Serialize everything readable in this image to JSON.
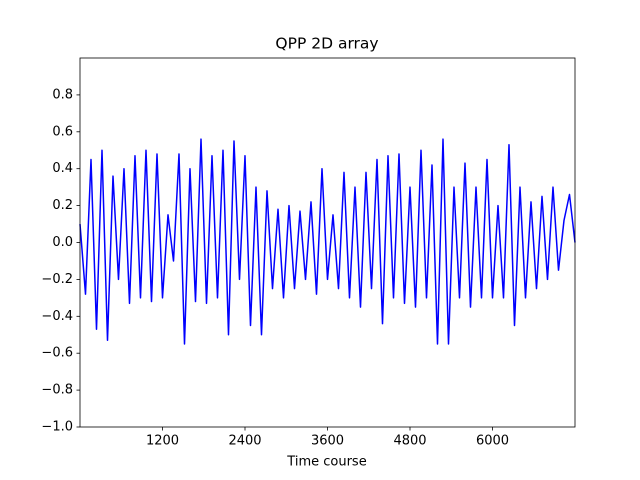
{
  "chart_data": {
    "type": "line",
    "title": "QPP 2D array",
    "x_label": "Time course",
    "x": [
      0,
      80,
      160,
      240,
      320,
      400,
      480,
      560,
      640,
      720,
      800,
      880,
      960,
      1040,
      1120,
      1200,
      1280,
      1360,
      1440,
      1520,
      1600,
      1680,
      1760,
      1840,
      1920,
      2000,
      2080,
      2160,
      2240,
      2320,
      2400,
      2480,
      2560,
      2640,
      2720,
      2800,
      2880,
      2960,
      3040,
      3120,
      3200,
      3280,
      3360,
      3440,
      3520,
      3600,
      3680,
      3760,
      3840,
      3920,
      4000,
      4080,
      4160,
      4240,
      4320,
      4400,
      4480,
      4560,
      4640,
      4720,
      4800,
      4880,
      4960,
      5040,
      5120,
      5200,
      5280,
      5360,
      5440,
      5520,
      5600,
      5680,
      5760,
      5840,
      5920,
      6000,
      6080,
      6160,
      6240,
      6320,
      6400,
      6480,
      6560,
      6640,
      6720,
      6800,
      6880,
      6960,
      7040,
      7120,
      7200
    ],
    "series": [
      {
        "color": "#0000ff",
        "values": [
          0.1,
          -0.28,
          0.45,
          -0.47,
          0.5,
          -0.53,
          0.36,
          -0.2,
          0.4,
          -0.33,
          0.47,
          -0.3,
          0.5,
          -0.32,
          0.48,
          -0.3,
          0.15,
          -0.1,
          0.48,
          -0.55,
          0.4,
          -0.32,
          0.56,
          -0.33,
          0.47,
          -0.3,
          0.5,
          -0.5,
          0.55,
          -0.2,
          0.47,
          -0.45,
          0.3,
          -0.5,
          0.28,
          -0.25,
          0.18,
          -0.3,
          0.2,
          -0.25,
          0.17,
          -0.2,
          0.22,
          -0.28,
          0.4,
          -0.2,
          0.15,
          -0.25,
          0.38,
          -0.3,
          0.3,
          -0.35,
          0.38,
          -0.25,
          0.45,
          -0.44,
          0.47,
          -0.3,
          0.48,
          -0.33,
          0.3,
          -0.35,
          0.5,
          -0.3,
          0.42,
          -0.55,
          0.56,
          -0.55,
          0.3,
          -0.3,
          0.43,
          -0.35,
          0.3,
          -0.3,
          0.45,
          -0.3,
          0.2,
          -0.3,
          0.53,
          -0.45,
          0.3,
          -0.3,
          0.22,
          -0.25,
          0.25,
          -0.2,
          0.3,
          -0.15,
          0.12,
          0.26,
          0.0
        ]
      }
    ],
    "xlim": [
      0,
      7200
    ],
    "xticks": [
      1200,
      2400,
      3600,
      4800,
      6000
    ],
    "ylim": [
      -1,
      1
    ],
    "yticks": [
      {
        "value": -1,
        "label": "−1.0"
      },
      {
        "value": -0.8,
        "label": "−0.8"
      },
      {
        "value": -0.6,
        "label": "−0.6"
      },
      {
        "value": -0.4,
        "label": "−0.4"
      },
      {
        "value": -0.2,
        "label": "−0.2"
      },
      {
        "value": 0,
        "label": "0.0"
      },
      {
        "value": 0.2,
        "label": "0.2"
      },
      {
        "value": 0.4,
        "label": "0.4"
      },
      {
        "value": 0.6,
        "label": "0.6"
      },
      {
        "value": 0.8,
        "label": "0.8"
      }
    ],
    "grid": false
  }
}
